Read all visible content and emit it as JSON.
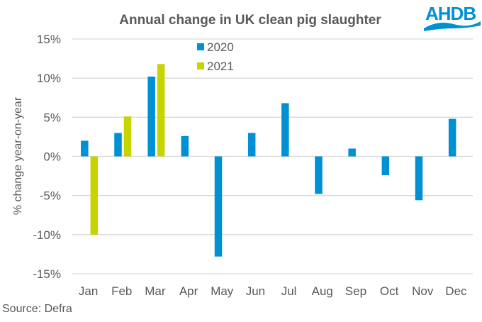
{
  "logo": {
    "text": "AHDB",
    "color": "#0090d4"
  },
  "source": "Source: Defra",
  "chart_data": {
    "type": "bar",
    "title": "Annual change in UK clean pig slaughter",
    "xlabel": "",
    "ylabel": "% change year-on-year",
    "ylim": [
      -15,
      15
    ],
    "yticks": [
      15,
      10,
      5,
      0,
      -5,
      -10,
      -15
    ],
    "ytick_labels": [
      "15%",
      "10%",
      "5%",
      "0%",
      "-5%",
      "-10%",
      "-15%"
    ],
    "grid": true,
    "legend_position": "top-left",
    "categories": [
      "Jan",
      "Feb",
      "Mar",
      "Apr",
      "May",
      "Jun",
      "Jul",
      "Aug",
      "Sep",
      "Oct",
      "Nov",
      "Dec"
    ],
    "series": [
      {
        "name": "2020",
        "color": "#0090d4",
        "values": [
          2.0,
          3.0,
          10.2,
          2.6,
          -12.8,
          3.0,
          6.8,
          -4.8,
          1.0,
          -2.4,
          -5.6,
          4.8
        ]
      },
      {
        "name": "2021",
        "color": "#c8d400",
        "values": [
          -10.0,
          5.1,
          11.8,
          null,
          null,
          null,
          null,
          null,
          null,
          null,
          null,
          null
        ]
      }
    ]
  }
}
